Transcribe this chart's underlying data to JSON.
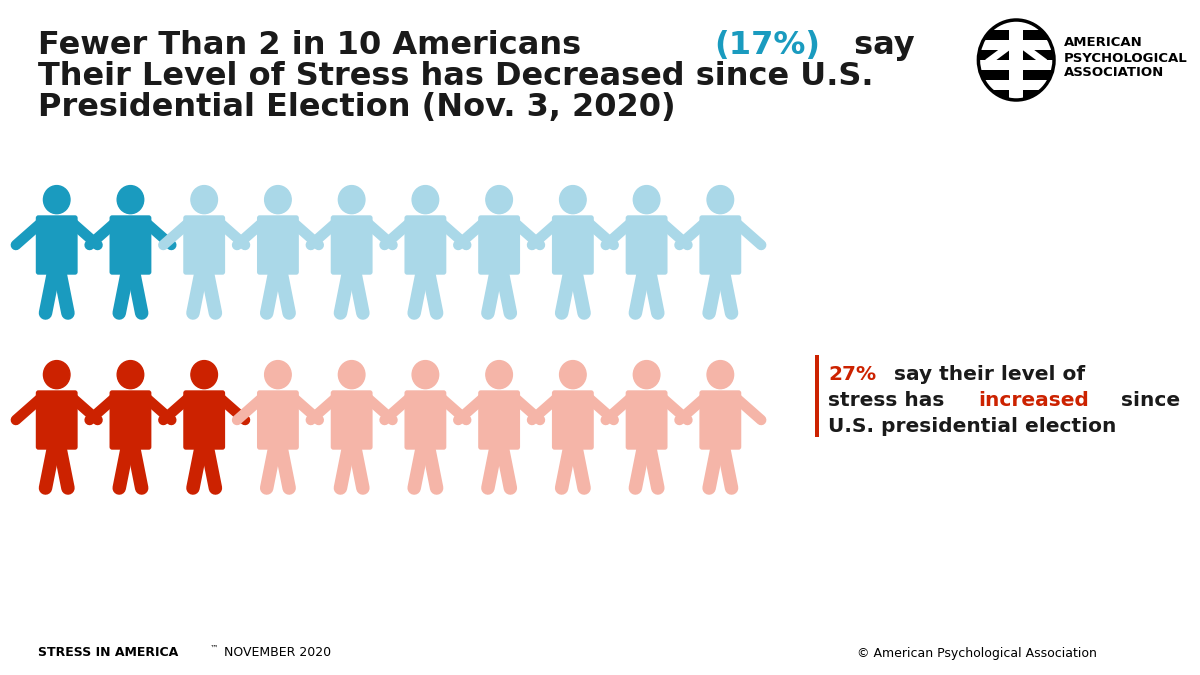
{
  "title_line1": "Fewer Than 2 in 10 Americans ",
  "title_highlight": "(17%)",
  "title_line2": " say",
  "title_line3": "Their Level of Stress has Decreased since U.S.",
  "title_line4": "Presidential Election (Nov. 3, 2020)",
  "title_fontsize": 23,
  "title_color": "#1a1a1a",
  "highlight_color_blue": "#1a9bbf",
  "blue_dark": "#1a9bbf",
  "blue_light": "#aad8e8",
  "red_dark": "#cc2200",
  "red_light": "#f5b5a8",
  "blue_n_dark": 2,
  "blue_n_total": 10,
  "red_n_dark": 3,
  "red_n_total": 10,
  "annotation_pct": "27%",
  "annotation_color": "#1a1a1a",
  "annotation_red": "#cc2200",
  "footer_left_bold": "STRESS IN AMERICA",
  "footer_left_tm": "™",
  "footer_right": "© American Psychological Association",
  "background_color": "#ffffff",
  "bar_accent_color": "#cc2200"
}
